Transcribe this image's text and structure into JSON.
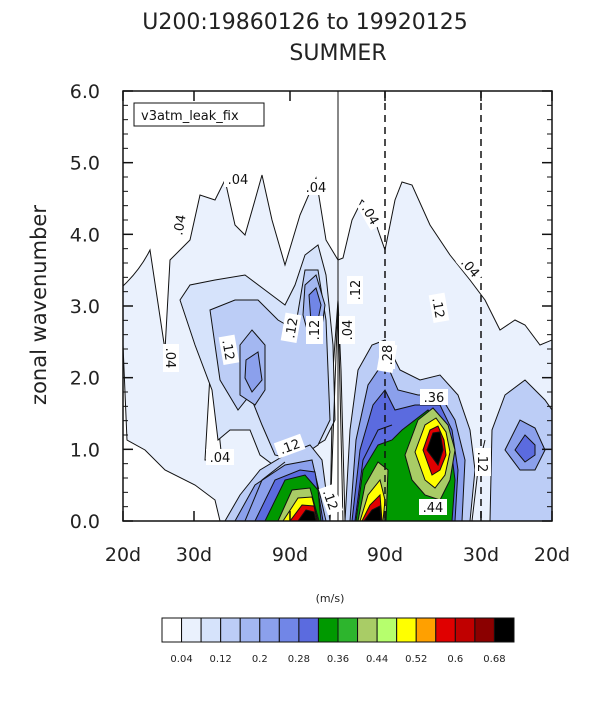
{
  "chart_data": {
    "type": "contour",
    "title_lines": [
      "U200:19860126 to 19920125",
      "SUMMER"
    ],
    "ylabel": "zonal wavenumber",
    "ylim": [
      0.0,
      6.0
    ],
    "ytick_labels": [
      "0.0",
      "1.0",
      "2.0",
      "3.0",
      "4.0",
      "5.0",
      "6.0"
    ],
    "xtick_labels": [
      "20d",
      "30d",
      "90d",
      "90d",
      "30d",
      "20d"
    ],
    "annotation": "v3atm_leak_fix",
    "units": "(m/s)",
    "contour_labels": [
      ".04",
      ".04",
      ".04",
      ".04",
      ".04",
      ".04",
      ".04",
      ".04",
      ".04",
      ".12",
      ".12",
      ".12",
      ".12",
      ".12",
      ".12",
      ".12",
      ".12",
      ".12",
      ".28",
      ".36",
      ".44"
    ],
    "colorbar_labels": [
      "0.04",
      "0.12",
      "0.2",
      "0.28",
      "0.36",
      "0.44",
      "0.52",
      "0.6",
      "0.68"
    ],
    "colorbar_colors": [
      "#ffffff",
      "#eaf1fd",
      "#d6e3fb",
      "#bccdf6",
      "#a3b7f1",
      "#8ba0ec",
      "#7186e7",
      "#5b6bdf",
      "#009900",
      "#2db52d",
      "#a9cc66",
      "#b6ff6d",
      "#ffff00",
      "#ffa000",
      "#e00000",
      "#c00000",
      "#8b0000",
      "#000000"
    ],
    "contour_levels": [
      0.04,
      0.08,
      0.12,
      0.16,
      0.2,
      0.24,
      0.28,
      0.32,
      0.36,
      0.4,
      0.44,
      0.48,
      0.52,
      0.56,
      0.6,
      0.64,
      0.68
    ]
  }
}
